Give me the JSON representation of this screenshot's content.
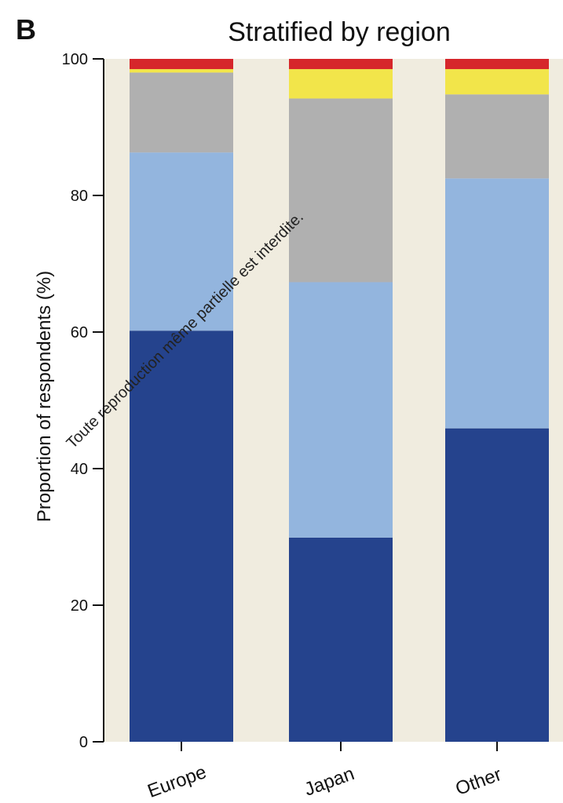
{
  "panel_label": "B",
  "watermark": "Toute reproduction même partielle est interdite.",
  "chart_data": {
    "type": "bar",
    "stacked": true,
    "title": "Stratified by region",
    "xlabel": "",
    "ylabel": "Proportion of respondents (%)",
    "ylim": [
      0,
      100
    ],
    "yticks": [
      "0",
      "20",
      "40",
      "60",
      "80",
      "100"
    ],
    "categories": [
      "Europe",
      "Japan",
      "Other"
    ],
    "background_color": "#f0ecdf",
    "grid": false,
    "series": [
      {
        "color": "#25438d",
        "values": [
          60.2,
          29.9,
          45.9
        ]
      },
      {
        "color": "#93b5de",
        "values": [
          26.1,
          37.4,
          36.6
        ]
      },
      {
        "color": "#b0b0b0",
        "values": [
          11.7,
          26.9,
          12.3
        ]
      },
      {
        "color": "#f2e54a",
        "values": [
          0.5,
          4.3,
          3.7
        ]
      },
      {
        "color": "#d6262b",
        "values": [
          1.5,
          1.5,
          1.5
        ]
      }
    ]
  }
}
